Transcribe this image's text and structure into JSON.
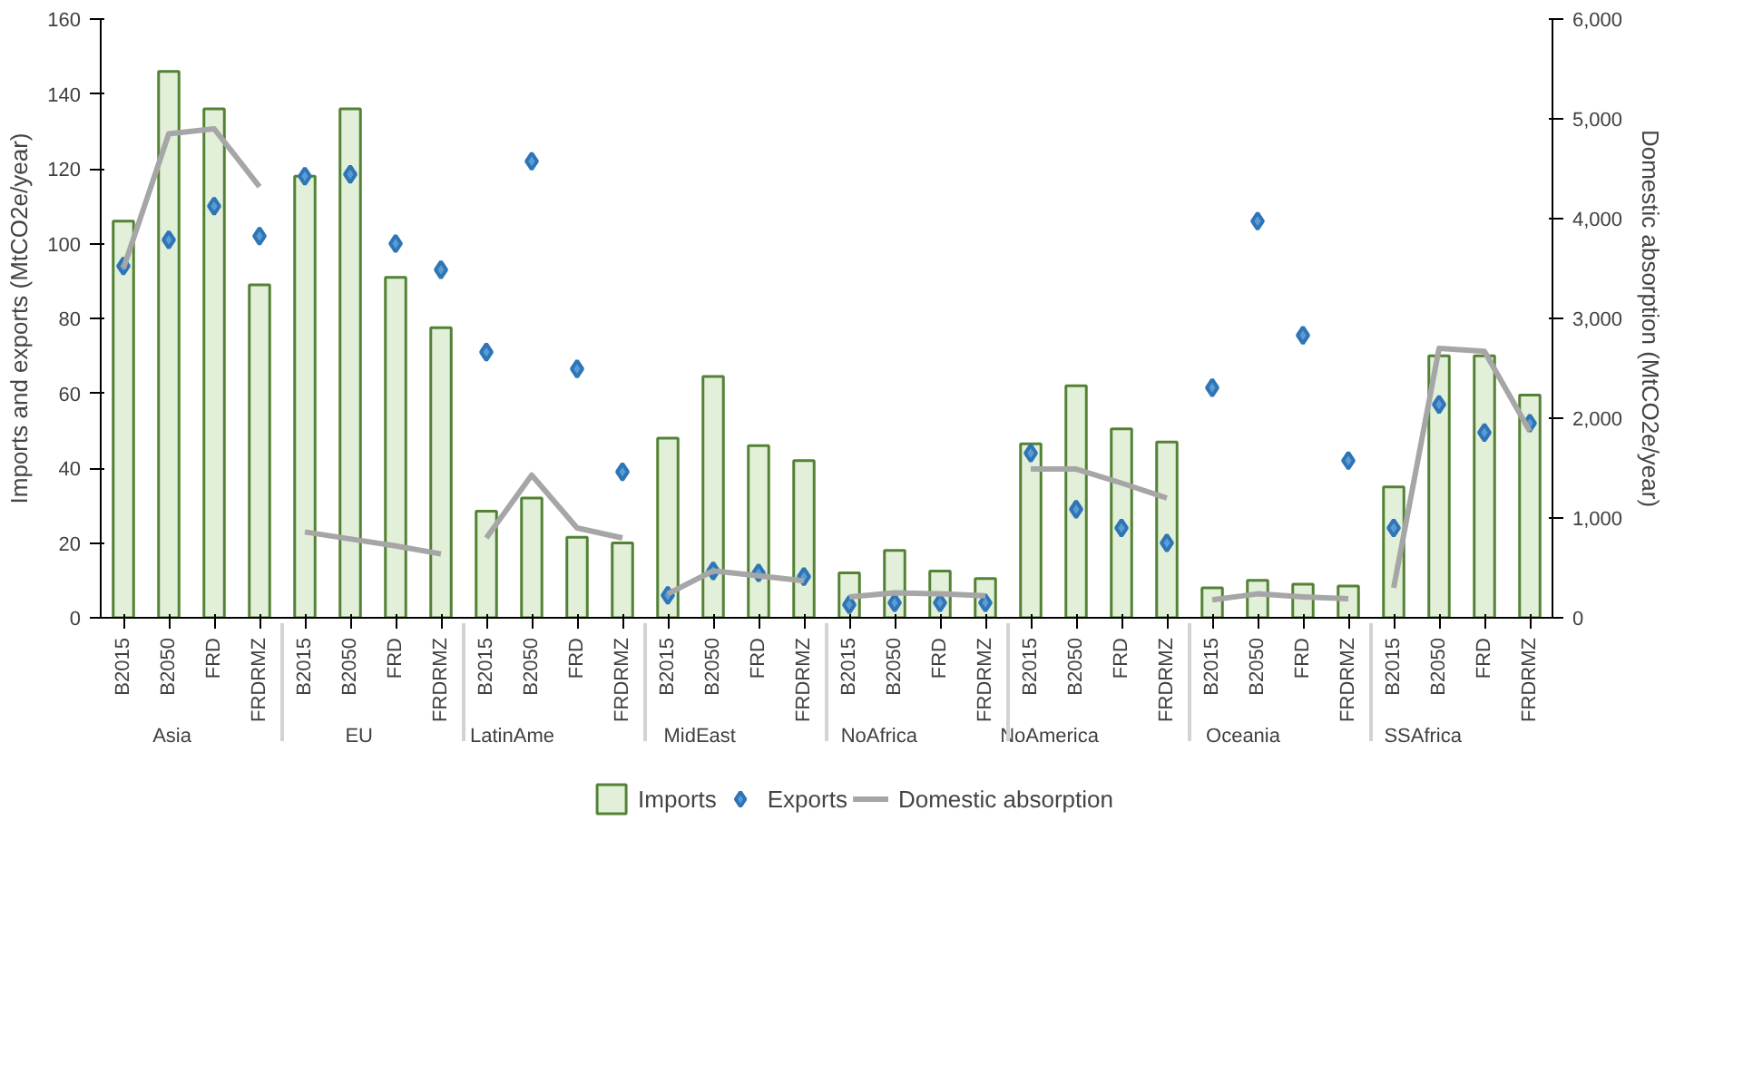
{
  "chart_data": {
    "type": "bar",
    "categories": [
      "B2015",
      "B2050",
      "FRD",
      "FRDRMZ",
      "B2015",
      "B2050",
      "FRD",
      "FRDRMZ",
      "B2015",
      "B2050",
      "FRD",
      "FRDRMZ",
      "B2015",
      "B2050",
      "FRD",
      "FRDRMZ",
      "B2015",
      "B2050",
      "FRD",
      "FRDRMZ",
      "B2015",
      "B2050",
      "FRD",
      "FRDRMZ",
      "B2015",
      "B2050",
      "FRD",
      "FRDRMZ",
      "B2015",
      "B2050",
      "FRD",
      "FRDRMZ"
    ],
    "annotations": [
      "Asia",
      "EU",
      "LatinAme",
      "MidEast",
      "NoAfrica",
      "NoAmerica",
      "Oceania",
      "SSAfrica"
    ],
    "ylabel": "Imports and exports (MtCO2e/year)",
    "y2label": "Domestic absorption (MtCO2e/year)",
    "ylim": [
      0,
      160
    ],
    "yticks": [
      0,
      20,
      40,
      60,
      80,
      100,
      120,
      140,
      160
    ],
    "y2lim": [
      0,
      6000
    ],
    "y2ticks": [
      0,
      {
        "value": 1000,
        "label": "1,000"
      },
      {
        "value": 2000,
        "label": "2,000"
      },
      {
        "value": 3000,
        "label": "3,000"
      },
      {
        "value": 4000,
        "label": "4,000"
      },
      {
        "value": 5000,
        "label": "5,000"
      },
      {
        "value": 6000,
        "label": "6,000"
      }
    ],
    "legend": "bottom",
    "grid": false,
    "series": [
      {
        "name": "Imports",
        "color": "#548235",
        "values": [
          106,
          146,
          136,
          89,
          118,
          136,
          91,
          77.5,
          28.5,
          32,
          21.5,
          20,
          48,
          64.5,
          46,
          42,
          12,
          18,
          12.5,
          10.5,
          46.5,
          62,
          50.5,
          47,
          8,
          10,
          9,
          8.5,
          35,
          70,
          70,
          59.5
        ]
      },
      {
        "name": "Exports",
        "type": "scatter",
        "marker": "diamond",
        "color": "#2e75b6",
        "values": [
          94,
          101,
          110,
          102,
          118,
          118.5,
          100,
          93,
          71,
          122,
          66.5,
          39,
          6,
          12.5,
          12,
          11,
          3.5,
          4,
          4,
          4,
          44,
          29,
          24,
          20,
          61.5,
          106,
          75.5,
          42,
          24,
          57,
          49.5,
          52
        ]
      },
      {
        "name": "Domestic absorption",
        "type": "line",
        "axis": "y2",
        "color": "#a6a6a6",
        "values": [
          3500,
          4850,
          4900,
          4320,
          860,
          790,
          720,
          640,
          800,
          1430,
          900,
          800,
          240,
          470,
          420,
          370,
          210,
          250,
          240,
          220,
          1490,
          1490,
          1350,
          1200,
          180,
          240,
          210,
          190,
          300,
          2700,
          2670,
          1870
        ]
      }
    ]
  }
}
